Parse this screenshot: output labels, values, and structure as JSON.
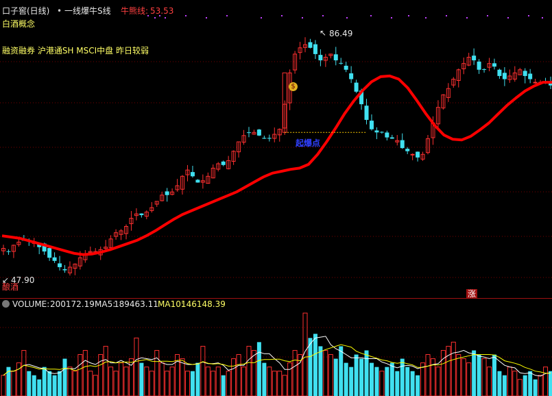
{
  "header": {
    "title": "口子窖(日线)",
    "indicator": "一线爆牛S线",
    "bull_line_label": "牛熊线:",
    "bull_line_value": "53.53"
  },
  "concept_tag": "白酒概念",
  "tags_line": "融资融券 沪港通SH MSCI中盘 昨日较弱",
  "annotations": {
    "high_label": "86.49",
    "low_label": "47.90",
    "bottom_left_tag": "酿酒",
    "rise_tag": "涨",
    "breakout_label": "起爆点",
    "coin_icon": "$"
  },
  "volume_header": {
    "toggle_icon": "chevron-down-icon",
    "volume_label": "VOLUME:",
    "volume_value": "200172.19",
    "ma5_label": "MA5:",
    "ma5_value": "189463.11",
    "ma10_label": "MA10:",
    "ma10_value": "146148.39"
  },
  "colors": {
    "up": "#ff3030",
    "down": "#40e0f0",
    "trend_line": "#ff0000",
    "ma5": "#ffffff",
    "ma10": "#ffff00",
    "grid": "#7a0000"
  },
  "chart_data": [
    {
      "type": "candlestick",
      "title": "口子窖(日线)",
      "y_extremes": {
        "high": 86.49,
        "low": 47.9
      },
      "close_path": [
        52,
        51.5,
        52.5,
        53,
        53.3,
        53.2,
        53,
        52.2,
        51.5,
        50.5,
        50,
        49,
        48.5,
        49,
        49.5,
        50.5,
        51,
        51.5,
        51.5,
        51.8,
        52.2,
        53.5,
        54.5,
        54.8,
        55.5,
        56.8,
        57.5,
        57.3,
        57.8,
        58.5,
        59.5,
        60.5,
        60.5,
        61,
        62,
        63.5,
        64.5,
        63.5,
        62.5,
        62.8,
        63.5,
        64.8,
        65.5,
        65.3,
        66,
        67.5,
        69,
        70,
        70.5,
        70.5,
        70,
        69.5,
        69.5,
        70.2,
        71,
        75,
        80,
        83,
        84,
        84.5,
        84,
        83,
        82,
        82.5,
        83,
        82,
        81.5,
        80.5,
        79,
        77,
        75,
        72.5,
        71,
        70.5,
        70.5,
        69.7,
        69.5,
        69.2,
        68,
        67.5,
        67,
        66.5,
        67,
        69.5,
        72,
        74.5,
        76.5,
        77.5,
        79,
        80.5,
        81.5,
        82.5,
        82,
        80.5,
        80.5,
        81.5,
        81,
        79.5,
        79,
        79.5,
        80,
        80.5,
        79.5,
        79,
        78.5,
        78.5,
        78.5,
        78
      ],
      "bull_bear_line": [
        54,
        53.8,
        53.6,
        53.2,
        52.8,
        52.4,
        52,
        51.6,
        51.2,
        51,
        51.1,
        51.4,
        51.8,
        52.3,
        52.8,
        53.3,
        54,
        54.8,
        55.7,
        56.6,
        57.4,
        58,
        58.6,
        59.2,
        59.8,
        60.4,
        61,
        61.8,
        62.6,
        63.4,
        64,
        64.3,
        64.6,
        64.8,
        65.4,
        67,
        69,
        71.2,
        73.5,
        75.5,
        77.2,
        78.6,
        79.4,
        79.5,
        79,
        77.6,
        75.6,
        73.5,
        71.6,
        70.1,
        69.4,
        69.3,
        69.9,
        70.9,
        72,
        73.4,
        74.8,
        76,
        77.1,
        77.9,
        78.5,
        78.5
      ],
      "volume": {
        "title": "VOLUME",
        "value": 200172.19,
        "ma5": 189463.11,
        "ma10": 146148.39,
        "series_ratio": [
          0.25,
          0.35,
          0.3,
          0.4,
          0.55,
          0.3,
          0.25,
          0.2,
          0.35,
          0.3,
          0.25,
          0.3,
          0.45,
          0.35,
          0.3,
          0.5,
          0.55,
          0.3,
          0.25,
          0.5,
          0.6,
          0.35,
          0.3,
          0.4,
          0.35,
          0.45,
          0.7,
          0.4,
          0.35,
          0.3,
          0.55,
          0.4,
          0.3,
          0.35,
          0.5,
          0.45,
          0.3,
          0.3,
          0.4,
          0.6,
          0.35,
          0.3,
          0.35,
          0.25,
          0.3,
          0.45,
          0.5,
          0.35,
          0.6,
          0.55,
          0.65,
          0.4,
          0.35,
          0.3,
          0.3,
          0.25,
          0.4,
          0.55,
          0.5,
          1.0,
          0.7,
          0.75,
          0.6,
          0.55,
          0.5,
          0.45,
          0.6,
          0.4,
          0.35,
          0.5,
          0.45,
          0.55,
          0.4,
          0.35,
          0.3,
          0.35,
          0.4,
          0.3,
          0.45,
          0.35,
          0.3,
          0.25,
          0.4,
          0.5,
          0.45,
          0.35,
          0.55,
          0.6,
          0.65,
          0.5,
          0.45,
          0.4,
          0.55,
          0.5,
          0.45,
          0.35,
          0.5,
          0.3,
          0.25,
          0.35,
          0.3,
          0.2,
          0.25,
          0.3,
          0.2,
          0.25,
          0.35,
          0.3
        ]
      }
    }
  ]
}
